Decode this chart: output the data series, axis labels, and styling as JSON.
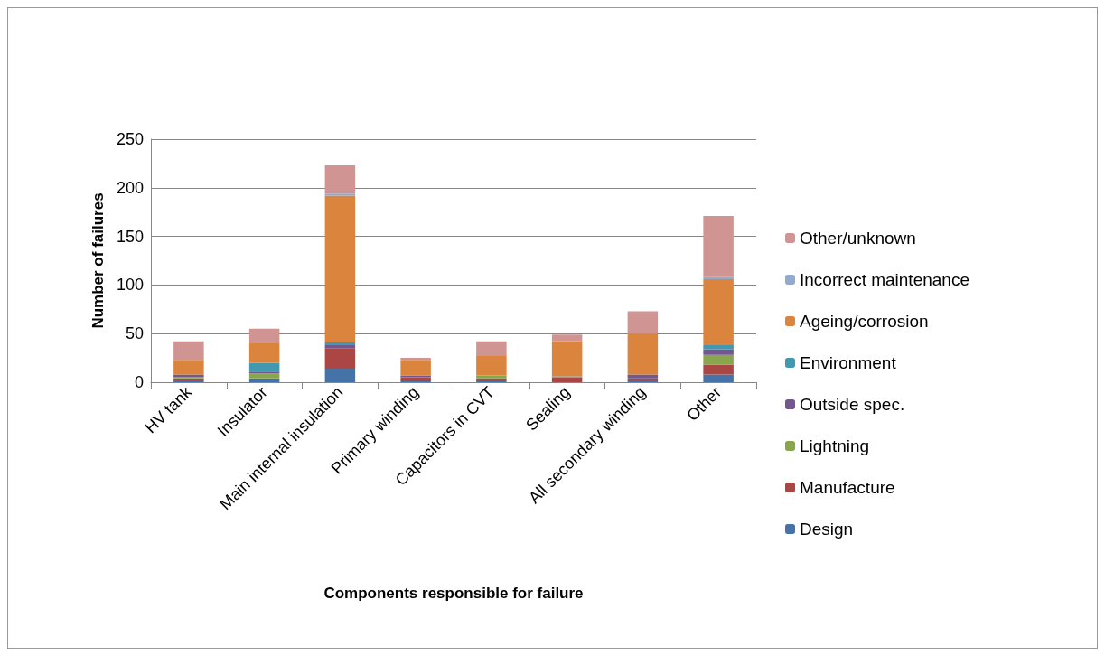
{
  "chart_data": {
    "type": "bar",
    "stacked": true,
    "xlabel": "Components responsible for failure",
    "ylabel": "Number of failures",
    "categories": [
      "HV tank",
      "Insulator",
      "Main internal insulation",
      "Primary winding",
      "Capacitors in CVT",
      "Sealing",
      "All secondary winding",
      "Other"
    ],
    "series": [
      {
        "name": "Design",
        "color": "#4572a7",
        "values": [
          1,
          4,
          14,
          1,
          1,
          0,
          1,
          8
        ]
      },
      {
        "name": "Manufacture",
        "color": "#aa4643",
        "values": [
          3,
          0,
          21,
          4,
          3,
          5,
          3,
          10
        ]
      },
      {
        "name": "Lightning",
        "color": "#89a54e",
        "values": [
          1,
          5,
          0,
          0,
          3,
          0,
          0,
          10
        ]
      },
      {
        "name": "Outside spec.",
        "color": "#71588f",
        "values": [
          3,
          2,
          3,
          2,
          0,
          0,
          4,
          6
        ]
      },
      {
        "name": "Environment",
        "color": "#4198af",
        "values": [
          0,
          9,
          3,
          0,
          0,
          1,
          0,
          4
        ]
      },
      {
        "name": "Ageing/corrosion",
        "color": "#db843d",
        "values": [
          15,
          20,
          151,
          16,
          20,
          36,
          42,
          68
        ]
      },
      {
        "name": "Incorrect maintenance",
        "color": "#93a9cf",
        "values": [
          0,
          0,
          2,
          0,
          0,
          0,
          0,
          2
        ]
      },
      {
        "name": "Other/unknown",
        "color": "#d09493",
        "values": [
          19,
          15,
          29,
          2,
          15,
          7,
          23,
          63
        ]
      }
    ],
    "ylim": [
      0,
      250
    ],
    "yticks": [
      0,
      50,
      100,
      150,
      200,
      250
    ],
    "grid": "y",
    "legend": "right"
  }
}
